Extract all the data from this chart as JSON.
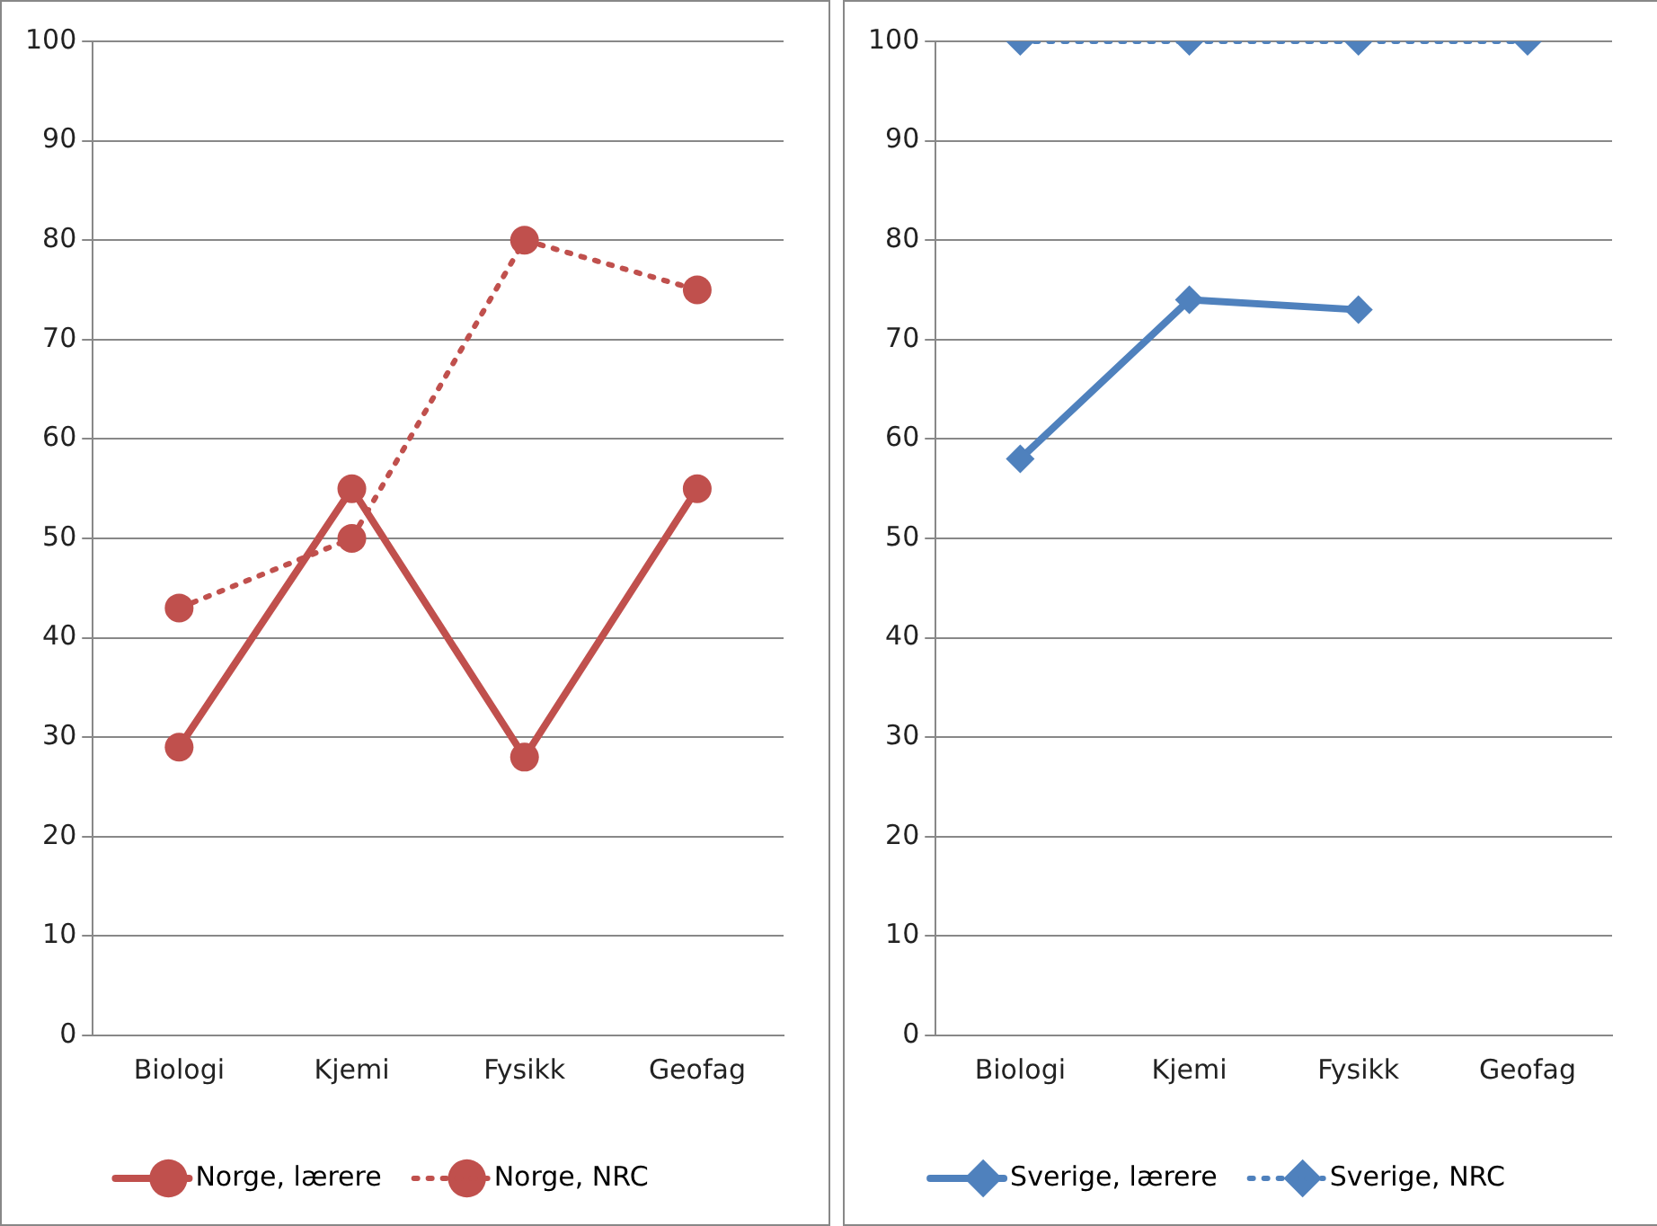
{
  "chart_data": [
    {
      "type": "line",
      "categories": [
        "Biologi",
        "Kjemi",
        "Fysikk",
        "Geofag"
      ],
      "ylim": [
        0,
        100
      ],
      "yticks": [
        0,
        10,
        20,
        30,
        40,
        50,
        60,
        70,
        80,
        90,
        100
      ],
      "grid": "y",
      "legend": "bottom",
      "marker": "circle",
      "series": [
        {
          "name": "Norge, lærere",
          "color": "#c0504d",
          "line_style": "solid",
          "values": [
            29,
            55,
            28,
            55
          ]
        },
        {
          "name": "Norge, NRC",
          "color": "#c0504d",
          "line_style": "dotted",
          "values": [
            43,
            50,
            80,
            75
          ]
        }
      ]
    },
    {
      "type": "line",
      "categories": [
        "Biologi",
        "Kjemi",
        "Fysikk",
        "Geofag"
      ],
      "ylim": [
        0,
        100
      ],
      "yticks": [
        0,
        10,
        20,
        30,
        40,
        50,
        60,
        70,
        80,
        90,
        100
      ],
      "grid": "y",
      "legend": "bottom",
      "marker": "diamond",
      "series": [
        {
          "name": "Sverige, lærere",
          "color": "#4f81bd",
          "line_style": "solid",
          "values": [
            58,
            74,
            73,
            null
          ]
        },
        {
          "name": "Sverige, NRC",
          "color": "#4f81bd",
          "line_style": "dotted",
          "values": [
            100,
            100,
            100,
            100
          ]
        }
      ]
    }
  ]
}
